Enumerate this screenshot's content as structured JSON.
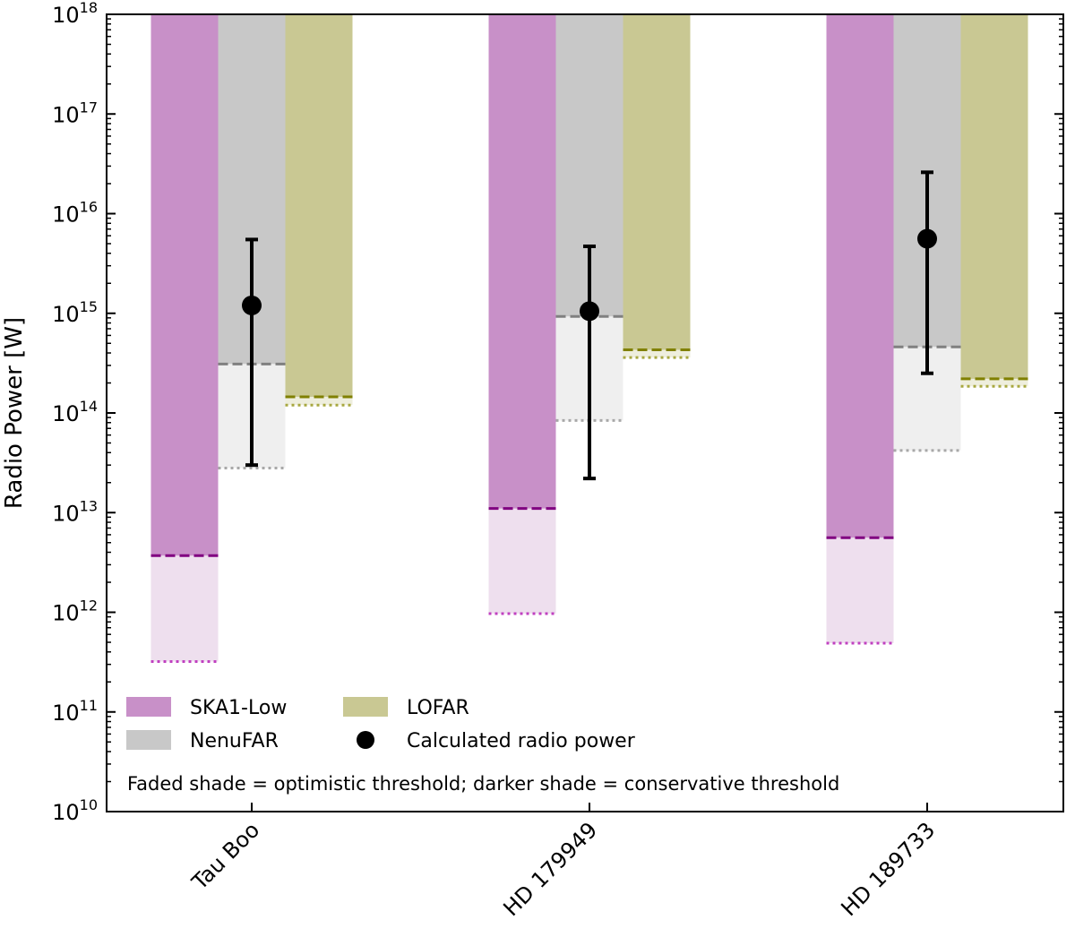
{
  "chart_data": {
    "type": "bar",
    "ylabel": "Radio Power [W]",
    "xlabel": "",
    "yscale": "log",
    "ylim": [
      10000000000.0,
      1e+18
    ],
    "ytick_base": "10",
    "yticks": [
      10,
      11,
      12,
      13,
      14,
      15,
      16,
      17,
      18
    ],
    "categories": [
      "Tau Boo",
      "HD 179949",
      "HD 189733"
    ],
    "series": [
      {
        "name": "SKA1-Low",
        "color_dark": "#c890c8",
        "color_faded": "#eedfee",
        "line_color": "#800080",
        "line_color_opt": "#c040c0",
        "conservative": [
          3700000000000.0,
          11000000000000.0,
          5600000000000.0
        ],
        "optimistic": [
          320000000000.0,
          970000000000.0,
          490000000000.0
        ]
      },
      {
        "name": "NenuFAR",
        "color_dark": "#c8c8c8",
        "color_faded": "#efefef",
        "line_color": "#808080",
        "line_color_opt": "#a8a8a8",
        "conservative": [
          310000000000000.0,
          930000000000000.0,
          460000000000000.0
        ],
        "optimistic": [
          28000000000000.0,
          84000000000000.0,
          42000000000000.0
        ]
      },
      {
        "name": "LOFAR",
        "color_dark": "#c9c893",
        "color_faded": "#eeeedd",
        "line_color": "#808000",
        "line_color_opt": "#a8a840",
        "conservative": [
          145000000000000.0,
          430000000000000.0,
          220000000000000.0
        ],
        "optimistic": [
          120000000000000.0,
          360000000000000.0,
          185000000000000.0
        ]
      }
    ],
    "calculated": {
      "name": "Calculated radio power",
      "values": [
        1200000000000000.0,
        1050000000000000.0,
        5600000000000000.0
      ],
      "err_low": [
        30000000000000.0,
        22000000000000.0,
        250000000000000.0
      ],
      "err_high": [
        5500000000000000.0,
        4700000000000000.0,
        2.6e+16
      ]
    },
    "legend": {
      "location": "lower-left",
      "entries": [
        "SKA1-Low",
        "LOFAR",
        "NenuFAR",
        "Calculated radio power"
      ],
      "note": "Faded shade = optimistic threshold; darker shade = conservative threshold"
    }
  }
}
